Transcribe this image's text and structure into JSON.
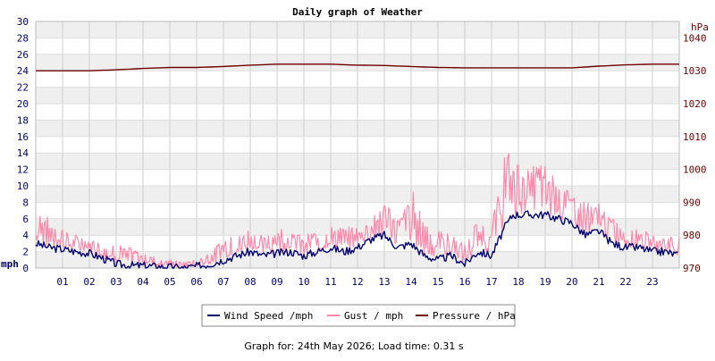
{
  "colors": {
    "wind": "#00006e",
    "gust": "#ff88aa",
    "pressure": "#6e0000",
    "band": "#efefef",
    "grid": "#cccccc",
    "axis_left": "#00006e",
    "axis_right": "#6e0000"
  },
  "chart_data": {
    "type": "line",
    "title": "Daily graph of Weather",
    "y_left_unit": "mph",
    "y_right_unit": "hPa",
    "ylim_left": [
      0,
      30
    ],
    "ylim_right": [
      970,
      1045
    ],
    "y_left_ticks": [
      "0",
      "2",
      "4",
      "6",
      "8",
      "10",
      "12",
      "14",
      "16",
      "18",
      "20",
      "22",
      "24",
      "26",
      "28",
      "30"
    ],
    "y_right_ticks": [
      "970",
      "980",
      "990",
      "1000",
      "1010",
      "1020",
      "1030",
      "1040"
    ],
    "x_ticks": [
      "01",
      "02",
      "03",
      "04",
      "05",
      "06",
      "07",
      "08",
      "09",
      "10",
      "11",
      "12",
      "13",
      "14",
      "15",
      "16",
      "17",
      "18",
      "19",
      "20",
      "21",
      "22",
      "23"
    ],
    "xlim_hours": [
      0,
      24
    ],
    "grid": true,
    "legend_position": "bottom",
    "series": [
      {
        "name": "Wind Speed /mph",
        "axis": "left",
        "style": "line",
        "x": [
          0,
          0.5,
          1,
          1.5,
          2,
          2.5,
          3,
          3.5,
          4,
          4.5,
          5,
          5.5,
          6,
          6.5,
          7,
          7.5,
          8,
          8.5,
          9,
          9.5,
          10,
          10.5,
          11,
          11.5,
          12,
          12.5,
          13,
          13.5,
          14,
          14.5,
          15,
          15.5,
          16,
          16.5,
          17,
          17.5,
          17.8,
          18.5,
          19,
          19.5,
          20,
          20.5,
          21,
          21.5,
          22,
          22.5,
          23,
          23.5,
          24
        ],
        "values": [
          3,
          2.5,
          2.3,
          2,
          1.8,
          1.2,
          0.5,
          0.3,
          0.3,
          0.2,
          0.1,
          0,
          0.2,
          0.5,
          1,
          1.5,
          2,
          1.5,
          1.8,
          2,
          1.5,
          2,
          2.5,
          2,
          2.5,
          3.5,
          4,
          2.5,
          3,
          1.5,
          1,
          1.5,
          0.5,
          2,
          1.5,
          5,
          6.5,
          6.5,
          6.5,
          6,
          5.5,
          4,
          4.5,
          3,
          2.5,
          2.5,
          2,
          2,
          1.5
        ]
      },
      {
        "name": "Gust / mph",
        "axis": "left",
        "style": "spiky",
        "x": [
          0,
          0.5,
          1,
          1.5,
          2,
          2.5,
          3,
          3.5,
          4,
          4.5,
          5,
          5.5,
          6,
          6.5,
          7,
          7.5,
          8,
          8.5,
          9,
          9.5,
          10,
          10.5,
          11,
          11.5,
          12,
          12.5,
          13,
          13.5,
          14,
          14.5,
          15,
          15.5,
          16,
          16.5,
          17,
          17.5,
          17.8,
          18.5,
          19,
          19.5,
          20,
          20.5,
          21,
          21.5,
          22,
          22.5,
          23,
          23.5,
          24
        ],
        "values": [
          8,
          6,
          5,
          4,
          3.5,
          3,
          3,
          2.5,
          2,
          1.5,
          1,
          0.8,
          1,
          2,
          3.5,
          4,
          5,
          4,
          5,
          4.5,
          4,
          4.5,
          5,
          5,
          5,
          6,
          8,
          6,
          10,
          6,
          5,
          4,
          3,
          6,
          5,
          15,
          13,
          13,
          13,
          11,
          9,
          8,
          8,
          6,
          5,
          5,
          4,
          4,
          4
        ]
      },
      {
        "name": "Pressure / hPa",
        "axis": "right",
        "style": "line",
        "x": [
          0,
          1,
          2,
          3,
          4,
          5,
          6,
          7,
          8,
          9,
          10,
          11,
          12,
          13,
          14,
          15,
          16,
          17,
          18,
          19,
          20,
          21,
          22,
          23,
          24
        ],
        "values": [
          1030,
          1030,
          1030,
          1030.3,
          1030.7,
          1031,
          1031,
          1031.3,
          1031.7,
          1032,
          1032,
          1032,
          1031.7,
          1031.6,
          1031.3,
          1031,
          1030.9,
          1030.9,
          1030.9,
          1030.9,
          1030.9,
          1031.4,
          1031.8,
          1032,
          1032
        ]
      }
    ]
  },
  "footer": {
    "text": "Graph for: 24th May 2026; Load time: 0.31 s"
  }
}
